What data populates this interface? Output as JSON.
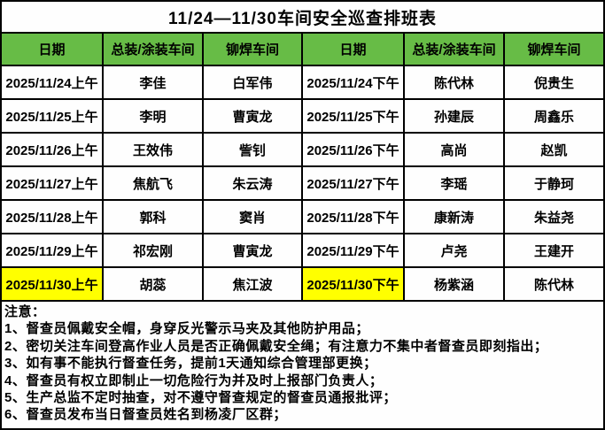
{
  "title": "11/24—11/30车间安全巡查排班表",
  "table": {
    "headers": [
      "日期",
      "总装/涂装车间",
      "铆焊车间",
      "日期",
      "总装/涂装车间",
      "铆焊车间"
    ],
    "rows": [
      [
        "2025/11/24上午",
        "李佳",
        "白军伟",
        "2025/11/24下午",
        "陈代林",
        "倪贵生"
      ],
      [
        "2025/11/25上午",
        "李明",
        "曹寅龙",
        "2025/11/25下午",
        "孙建辰",
        "周鑫乐"
      ],
      [
        "2025/11/26上午",
        "王效伟",
        "訾钊",
        "2025/11/26下午",
        "高尚",
        "赵凯"
      ],
      [
        "2025/11/27上午",
        "焦航飞",
        "朱云涛",
        "2025/11/27下午",
        "李瑶",
        "于静珂"
      ],
      [
        "2025/11/28上午",
        "郭科",
        "窦肖",
        "2025/11/28下午",
        "康新涛",
        "朱益尧"
      ],
      [
        "2025/11/29上午",
        "祁宏刚",
        "曹寅龙",
        "2025/11/29下午",
        "卢尧",
        "王建开"
      ],
      [
        "2025/11/30上午",
        "胡蕊",
        "焦江波",
        "2025/11/30下午",
        "杨紫涵",
        "陈代林"
      ]
    ],
    "highlighted_cells": [
      [
        6,
        0
      ],
      [
        6,
        3
      ]
    ]
  },
  "notes": {
    "heading": "注意：",
    "items": [
      "1、督查员佩戴安全帽，身穿反光警示马夹及其他防护用品；",
      "2、密切关注车间登高作业人员是否正确佩戴安全绳；有注意力不集中者督查员即刻指出；",
      "3、如有事不能执行督查任务，提前1天通知综合管理部更换；",
      "4、督查员有权立即制止一切危险行为并及时上报部门负责人；",
      "5、生产总监不定时抽查，对不遵守督查规定的督查员通报批评；",
      "6、督查员发布当日督查员姓名到杨凌厂区群；"
    ]
  },
  "colors": {
    "header_bg": "#67bc46",
    "highlight_bg": "#ffff00",
    "border": "#000000",
    "text": "#000000",
    "background": "#fefefe"
  }
}
